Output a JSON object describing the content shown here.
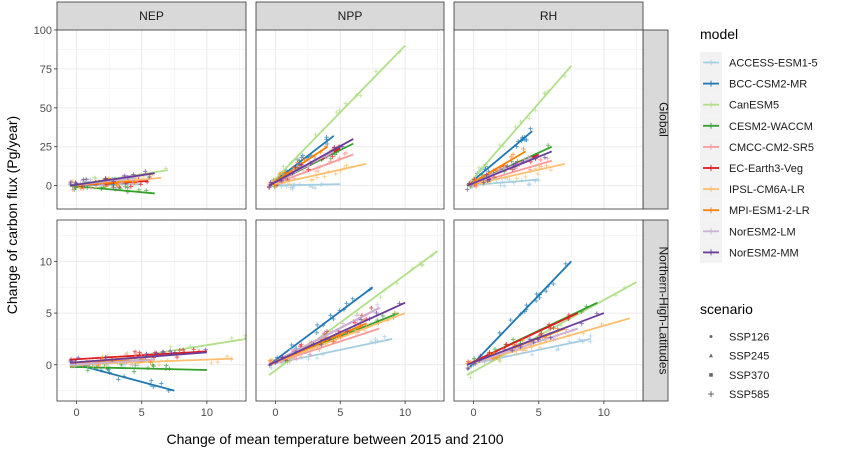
{
  "chart_data": {
    "type": "scatter",
    "xlabel": "Change of mean temperature between 2015 and 2100",
    "ylabel": "Change of carbon flux (Pg/year)",
    "facet_columns": [
      "NEP",
      "NPP",
      "RH"
    ],
    "facet_rows": [
      "Global",
      "Northern-High-Latitudes"
    ],
    "xlim": [
      -1.5,
      13
    ],
    "xticks": [
      0,
      5,
      10
    ],
    "rows": [
      {
        "ylim": [
          -15,
          100
        ],
        "yticks": [
          0,
          25,
          50,
          75,
          100
        ]
      },
      {
        "ylim": [
          -3.5,
          14
        ],
        "yticks": [
          0,
          5,
          10
        ]
      }
    ],
    "legend": {
      "model_title": "model",
      "models": [
        {
          "name": "ACCESS-ESM1-5",
          "color": "#a6cee3"
        },
        {
          "name": "BCC-CSM2-MR",
          "color": "#1f78b4"
        },
        {
          "name": "CanESM5",
          "color": "#b2df8a"
        },
        {
          "name": "CESM2-WACCM",
          "color": "#33a02c"
        },
        {
          "name": "CMCC-CM2-SR5",
          "color": "#fb9a99"
        },
        {
          "name": "EC-Earth3-Veg",
          "color": "#e31a1c"
        },
        {
          "name": "IPSL-CM6A-LR",
          "color": "#fdbf6f"
        },
        {
          "name": "MPI-ESM1-2-LR",
          "color": "#ff7f00"
        },
        {
          "name": "NorESM2-LM",
          "color": "#cab2d6"
        },
        {
          "name": "NorESM2-MM",
          "color": "#6a3d9a"
        }
      ],
      "scenario_title": "scenario",
      "scenarios": [
        {
          "name": "SSP126",
          "shape": "dot"
        },
        {
          "name": "SSP245",
          "shape": "triangle"
        },
        {
          "name": "SSP370",
          "shape": "square"
        },
        {
          "name": "SSP585",
          "shape": "plus"
        }
      ]
    },
    "trend_lines": [
      {
        "row": 0,
        "col": 0,
        "lines": [
          {
            "model": "ACCESS-ESM1-5",
            "x": [
              -0.5,
              5.0
            ],
            "y": [
              0.0,
              1.0
            ]
          },
          {
            "model": "BCC-CSM2-MR",
            "x": [
              -0.5,
              4.0
            ],
            "y": [
              0.0,
              2.0
            ]
          },
          {
            "model": "CanESM5",
            "x": [
              -0.5,
              7.0
            ],
            "y": [
              0.0,
              10.0
            ]
          },
          {
            "model": "CESM2-WACCM",
            "x": [
              -0.5,
              6.0
            ],
            "y": [
              0.0,
              -5.0
            ]
          },
          {
            "model": "CMCC-CM2-SR5",
            "x": [
              -0.5,
              5.0
            ],
            "y": [
              0.0,
              3.0
            ]
          },
          {
            "model": "EC-Earth3-Veg",
            "x": [
              -0.5,
              5.5
            ],
            "y": [
              0.0,
              3.0
            ]
          },
          {
            "model": "IPSL-CM6A-LR",
            "x": [
              -0.5,
              6.5
            ],
            "y": [
              0.0,
              5.0
            ]
          },
          {
            "model": "MPI-ESM1-2-LR",
            "x": [
              -0.5,
              4.5
            ],
            "y": [
              0.0,
              3.0
            ]
          },
          {
            "model": "NorESM2-LM",
            "x": [
              -0.5,
              4.5
            ],
            "y": [
              0.0,
              5.0
            ]
          },
          {
            "model": "NorESM2-MM",
            "x": [
              -0.5,
              6.0
            ],
            "y": [
              0.0,
              8.0
            ]
          }
        ]
      },
      {
        "row": 0,
        "col": 1,
        "lines": [
          {
            "model": "ACCESS-ESM1-5",
            "x": [
              -0.5,
              5.0
            ],
            "y": [
              0.0,
              1.0
            ]
          },
          {
            "model": "BCC-CSM2-MR",
            "x": [
              -0.5,
              4.5
            ],
            "y": [
              0.0,
              32.0
            ]
          },
          {
            "model": "CanESM5",
            "x": [
              -0.5,
              10.0
            ],
            "y": [
              0.0,
              90.0
            ]
          },
          {
            "model": "CESM2-WACCM",
            "x": [
              -0.5,
              6.0
            ],
            "y": [
              0.0,
              27.0
            ]
          },
          {
            "model": "CMCC-CM2-SR5",
            "x": [
              -0.5,
              6.0
            ],
            "y": [
              0.0,
              20.0
            ]
          },
          {
            "model": "EC-Earth3-Veg",
            "x": [
              -0.5,
              5.0
            ],
            "y": [
              0.0,
              24.0
            ]
          },
          {
            "model": "IPSL-CM6A-LR",
            "x": [
              -0.5,
              7.0
            ],
            "y": [
              0.0,
              14.0
            ]
          },
          {
            "model": "MPI-ESM1-2-LR",
            "x": [
              -0.5,
              4.0
            ],
            "y": [
              0.0,
              25.0
            ]
          },
          {
            "model": "NorESM2-LM",
            "x": [
              -0.5,
              4.5
            ],
            "y": [
              0.0,
              22.0
            ]
          },
          {
            "model": "NorESM2-MM",
            "x": [
              -0.5,
              6.0
            ],
            "y": [
              0.0,
              30.0
            ]
          }
        ]
      },
      {
        "row": 0,
        "col": 2,
        "lines": [
          {
            "model": "ACCESS-ESM1-5",
            "x": [
              -0.5,
              5.0
            ],
            "y": [
              0.0,
              4.0
            ]
          },
          {
            "model": "BCC-CSM2-MR",
            "x": [
              -0.5,
              4.5
            ],
            "y": [
              0.0,
              35.0
            ]
          },
          {
            "model": "CanESM5",
            "x": [
              -0.5,
              7.5
            ],
            "y": [
              0.0,
              77.0
            ]
          },
          {
            "model": "CESM2-WACCM",
            "x": [
              -0.5,
              6.0
            ],
            "y": [
              0.0,
              25.0
            ]
          },
          {
            "model": "CMCC-CM2-SR5",
            "x": [
              -0.5,
              6.0
            ],
            "y": [
              0.0,
              16.0
            ]
          },
          {
            "model": "EC-Earth3-Veg",
            "x": [
              -0.5,
              5.0
            ],
            "y": [
              0.0,
              20.0
            ]
          },
          {
            "model": "IPSL-CM6A-LR",
            "x": [
              -0.5,
              7.0
            ],
            "y": [
              0.0,
              14.0
            ]
          },
          {
            "model": "MPI-ESM1-2-LR",
            "x": [
              -0.5,
              4.0
            ],
            "y": [
              0.0,
              22.0
            ]
          },
          {
            "model": "NorESM2-LM",
            "x": [
              -0.5,
              4.5
            ],
            "y": [
              0.0,
              18.0
            ]
          },
          {
            "model": "NorESM2-MM",
            "x": [
              -0.5,
              6.0
            ],
            "y": [
              0.0,
              22.0
            ]
          }
        ]
      },
      {
        "row": 1,
        "col": 0,
        "lines": [
          {
            "model": "ACCESS-ESM1-5",
            "x": [
              -0.5,
              5.5
            ],
            "y": [
              0.0,
              0.3
            ]
          },
          {
            "model": "BCC-CSM2-MR",
            "x": [
              -0.5,
              7.5
            ],
            "y": [
              0.2,
              -2.5
            ]
          },
          {
            "model": "CanESM5",
            "x": [
              -0.5,
              13.0
            ],
            "y": [
              -0.2,
              2.5
            ]
          },
          {
            "model": "CESM2-WACCM",
            "x": [
              -0.5,
              10.0
            ],
            "y": [
              -0.2,
              -0.5
            ]
          },
          {
            "model": "CMCC-CM2-SR5",
            "x": [
              -0.5,
              6.0
            ],
            "y": [
              0.2,
              0.8
            ]
          },
          {
            "model": "EC-Earth3-Veg",
            "x": [
              -0.5,
              10.0
            ],
            "y": [
              0.5,
              1.3
            ]
          },
          {
            "model": "IPSL-CM6A-LR",
            "x": [
              -0.5,
              12.0
            ],
            "y": [
              0.0,
              0.6
            ]
          },
          {
            "model": "MPI-ESM1-2-LR",
            "x": [
              -0.5,
              6.0
            ],
            "y": [
              0.2,
              0.5
            ]
          },
          {
            "model": "NorESM2-LM",
            "x": [
              -0.5,
              6.0
            ],
            "y": [
              0.0,
              0.5
            ]
          },
          {
            "model": "NorESM2-MM",
            "x": [
              -0.5,
              10.0
            ],
            "y": [
              0.2,
              1.2
            ]
          }
        ]
      },
      {
        "row": 1,
        "col": 1,
        "lines": [
          {
            "model": "ACCESS-ESM1-5",
            "x": [
              -0.5,
              9.0
            ],
            "y": [
              0.0,
              2.5
            ]
          },
          {
            "model": "BCC-CSM2-MR",
            "x": [
              -0.5,
              7.5
            ],
            "y": [
              0.0,
              7.5
            ]
          },
          {
            "model": "CanESM5",
            "x": [
              -0.5,
              12.5
            ],
            "y": [
              -1.0,
              11.0
            ]
          },
          {
            "model": "CESM2-WACCM",
            "x": [
              -0.5,
              9.5
            ],
            "y": [
              0.0,
              5.0
            ]
          },
          {
            "model": "CMCC-CM2-SR5",
            "x": [
              -0.5,
              8.0
            ],
            "y": [
              0.0,
              3.5
            ]
          },
          {
            "model": "EC-Earth3-Veg",
            "x": [
              -0.5,
              8.0
            ],
            "y": [
              0.0,
              5.5
            ]
          },
          {
            "model": "IPSL-CM6A-LR",
            "x": [
              -0.5,
              10.0
            ],
            "y": [
              0.0,
              5.0
            ]
          },
          {
            "model": "MPI-ESM1-2-LR",
            "x": [
              -0.5,
              7.0
            ],
            "y": [
              0.0,
              4.0
            ]
          },
          {
            "model": "NorESM2-LM",
            "x": [
              -0.5,
              8.0
            ],
            "y": [
              0.0,
              5.5
            ]
          },
          {
            "model": "NorESM2-MM",
            "x": [
              -0.5,
              10.0
            ],
            "y": [
              0.0,
              6.0
            ]
          }
        ]
      },
      {
        "row": 1,
        "col": 2,
        "lines": [
          {
            "model": "ACCESS-ESM1-5",
            "x": [
              -0.5,
              9.0
            ],
            "y": [
              0.0,
              2.5
            ]
          },
          {
            "model": "BCC-CSM2-MR",
            "x": [
              -0.5,
              7.5
            ],
            "y": [
              -0.5,
              10.0
            ]
          },
          {
            "model": "CanESM5",
            "x": [
              -0.5,
              12.5
            ],
            "y": [
              -1.0,
              8.0
            ]
          },
          {
            "model": "CESM2-WACCM",
            "x": [
              -0.5,
              9.5
            ],
            "y": [
              0.0,
              6.0
            ]
          },
          {
            "model": "CMCC-CM2-SR5",
            "x": [
              -0.5,
              8.0
            ],
            "y": [
              0.0,
              3.5
            ]
          },
          {
            "model": "EC-Earth3-Veg",
            "x": [
              -0.5,
              8.0
            ],
            "y": [
              0.0,
              5.0
            ]
          },
          {
            "model": "IPSL-CM6A-LR",
            "x": [
              -0.5,
              12.0
            ],
            "y": [
              0.0,
              4.5
            ]
          },
          {
            "model": "MPI-ESM1-2-LR",
            "x": [
              -0.5,
              7.0
            ],
            "y": [
              0.0,
              3.5
            ]
          },
          {
            "model": "NorESM2-LM",
            "x": [
              -0.5,
              8.0
            ],
            "y": [
              0.0,
              3.5
            ]
          },
          {
            "model": "NorESM2-MM",
            "x": [
              -0.5,
              10.0
            ],
            "y": [
              0.0,
              5.0
            ]
          }
        ]
      }
    ]
  }
}
